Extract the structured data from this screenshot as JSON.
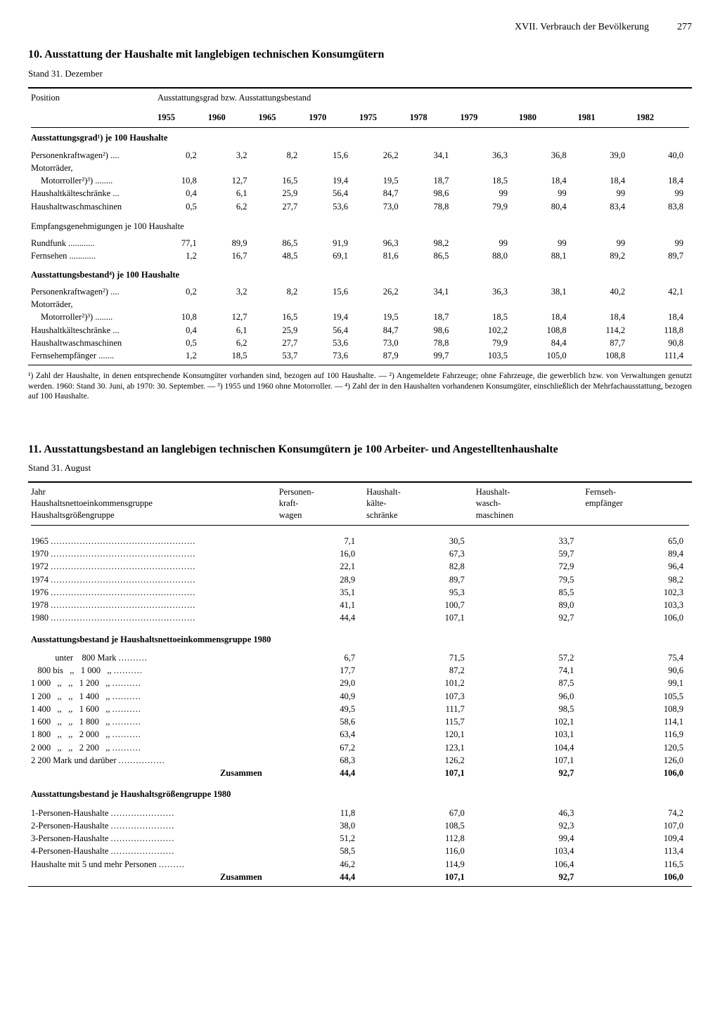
{
  "header": {
    "chapter": "XVII. Verbrauch der Bevölkerung",
    "page": "277"
  },
  "table10": {
    "title": "10. Ausstattung der Haushalte mit langlebigen technischen Konsumgütern",
    "subtitle": "Stand 31. Dezember",
    "col_position": "Position",
    "col_group_header": "Ausstattungsgrad bzw. Ausstattungsbestand",
    "years": [
      "1955",
      "1960",
      "1965",
      "1970",
      "1975",
      "1978",
      "1979",
      "1980",
      "1981",
      "1982"
    ],
    "sectionA": "Ausstattungsgrad¹) je 100 Haushalte",
    "rowsA": [
      {
        "label": "Personenkraftwagen²) ....",
        "vals": [
          "0,2",
          "3,2",
          "8,2",
          "15,6",
          "26,2",
          "34,1",
          "36,3",
          "36,8",
          "39,0",
          "40,0"
        ]
      },
      {
        "label": "Motorräder,",
        "vals": [
          "",
          "",
          "",
          "",
          "",
          "",
          "",
          "",
          "",
          ""
        ]
      },
      {
        "label": "Motorroller²)³) ........",
        "indent": true,
        "vals": [
          "10,8",
          "12,7",
          "16,5",
          "19,4",
          "19,5",
          "18,7",
          "18,5",
          "18,4",
          "18,4",
          "18,4"
        ]
      },
      {
        "label": "Haushaltkälteschränke ...",
        "vals": [
          "0,4",
          "6,1",
          "25,9",
          "56,4",
          "84,7",
          "98,6",
          "99",
          "99",
          "99",
          "99"
        ]
      },
      {
        "label": "Haushaltwaschmaschinen",
        "vals": [
          "0,5",
          "6,2",
          "27,7",
          "53,6",
          "73,0",
          "78,8",
          "79,9",
          "80,4",
          "83,4",
          "83,8"
        ]
      }
    ],
    "subheadA2": "Empfangsgenehmigungen je 100 Haushalte",
    "rowsA2": [
      {
        "label": "Rundfunk ............",
        "vals": [
          "77,1",
          "89,9",
          "86,5",
          "91,9",
          "96,3",
          "98,2",
          "99",
          "99",
          "99",
          "99"
        ]
      },
      {
        "label": "Fernsehen ............",
        "vals": [
          "1,2",
          "16,7",
          "48,5",
          "69,1",
          "81,6",
          "86,5",
          "88,0",
          "88,1",
          "89,2",
          "89,7"
        ]
      }
    ],
    "sectionB": "Ausstattungsbestand⁴) je 100 Haushalte",
    "rowsB": [
      {
        "label": "Personenkraftwagen²) ....",
        "vals": [
          "0,2",
          "3,2",
          "8,2",
          "15,6",
          "26,2",
          "34,1",
          "36,3",
          "38,1",
          "40,2",
          "42,1"
        ]
      },
      {
        "label": "Motorräder,",
        "vals": [
          "",
          "",
          "",
          "",
          "",
          "",
          "",
          "",
          "",
          ""
        ]
      },
      {
        "label": "Motorroller²)³) ........",
        "indent": true,
        "vals": [
          "10,8",
          "12,7",
          "16,5",
          "19,4",
          "19,5",
          "18,7",
          "18,5",
          "18,4",
          "18,4",
          "18,4"
        ]
      },
      {
        "label": "Haushaltkälteschränke ...",
        "vals": [
          "0,4",
          "6,1",
          "25,9",
          "56,4",
          "84,7",
          "98,6",
          "102,2",
          "108,8",
          "114,2",
          "118,8"
        ]
      },
      {
        "label": "Haushaltwaschmaschinen",
        "vals": [
          "0,5",
          "6,2",
          "27,7",
          "53,6",
          "73,0",
          "78,8",
          "79,9",
          "84,4",
          "87,7",
          "90,8"
        ]
      },
      {
        "label": "Fernsehempfänger .......",
        "vals": [
          "1,2",
          "18,5",
          "53,7",
          "73,6",
          "87,9",
          "99,7",
          "103,5",
          "105,0",
          "108,8",
          "111,4"
        ]
      }
    ],
    "footnote": "¹) Zahl der Haushalte, in denen entsprechende Konsumgüter vorhanden sind, bezogen auf 100 Haushalte. — ²) Angemeldete Fahrzeuge; ohne Fahrzeuge, die gewerblich bzw. von Verwaltungen genutzt werden. 1960: Stand 30. Juni, ab 1970: 30. September. — ³) 1955 und 1960 ohne Motorroller. — ⁴) Zahl der in den Haushalten vorhandenen Konsumgüter, einschließlich der Mehrfachausstattung, bezogen auf 100 Haushalte."
  },
  "table11": {
    "title": "11. Ausstattungsbestand an langlebigen technischen Konsumgütern je 100 Arbeiter- und Angestelltenhaushalte",
    "subtitle": "Stand 31. August",
    "col_label1": "Jahr",
    "col_label2": "Haushaltsnettoeinkommensgruppe",
    "col_label3": "Haushaltsgrößengruppe",
    "cols": [
      "Personen-\nkraft-\nwagen",
      "Haushalt-\nkälte-\nschränke",
      "Haushalt-\nwasch-\nmaschinen",
      "Fernseh-\nempfänger"
    ],
    "years_rows": [
      {
        "label": "1965",
        "vals": [
          "7,1",
          "30,5",
          "33,7",
          "65,0"
        ]
      },
      {
        "label": "1970",
        "vals": [
          "16,0",
          "67,3",
          "59,7",
          "89,4"
        ]
      },
      {
        "label": "1972",
        "vals": [
          "22,1",
          "82,8",
          "72,9",
          "96,4"
        ]
      },
      {
        "label": "1974",
        "vals": [
          "28,9",
          "89,7",
          "79,5",
          "98,2"
        ]
      },
      {
        "label": "1976",
        "vals": [
          "35,1",
          "95,3",
          "85,5",
          "102,3"
        ]
      },
      {
        "label": "1978",
        "vals": [
          "41,1",
          "100,7",
          "89,0",
          "103,3"
        ]
      },
      {
        "label": "1980",
        "vals": [
          "44,4",
          "107,1",
          "92,7",
          "106,0"
        ]
      }
    ],
    "income_header": "Ausstattungsbestand je Haushaltsnettoeinkommensgruppe 1980",
    "income_rows": [
      {
        "label": "           unter    800 Mark",
        "vals": [
          "6,7",
          "71,5",
          "57,2",
          "75,4"
        ]
      },
      {
        "label": "   800 bis   ,,   1 000   ,,",
        "vals": [
          "17,7",
          "87,2",
          "74,1",
          "90,6"
        ]
      },
      {
        "label": "1 000   ,,   ,,   1 200   ,,",
        "vals": [
          "29,0",
          "101,2",
          "87,5",
          "99,1"
        ]
      },
      {
        "label": "1 200   ,,   ,,   1 400   ,,",
        "vals": [
          "40,9",
          "107,3",
          "96,0",
          "105,5"
        ]
      },
      {
        "label": "1 400   ,,   ,,   1 600   ,,",
        "vals": [
          "49,5",
          "111,7",
          "98,5",
          "108,9"
        ]
      },
      {
        "label": "1 600   ,,   ,,   1 800   ,,",
        "vals": [
          "58,6",
          "115,7",
          "102,1",
          "114,1"
        ]
      },
      {
        "label": "1 800   ,,   ,,   2 000   ,,",
        "vals": [
          "63,4",
          "120,1",
          "103,1",
          "116,9"
        ]
      },
      {
        "label": "2 000   ,,   ,,   2 200   ,,",
        "vals": [
          "67,2",
          "123,1",
          "104,4",
          "120,5"
        ]
      },
      {
        "label": "2 200 Mark und darüber",
        "vals": [
          "68,3",
          "126,2",
          "107,1",
          "126,0"
        ]
      }
    ],
    "income_total": {
      "label": "Zusammen",
      "vals": [
        "44,4",
        "107,1",
        "92,7",
        "106,0"
      ]
    },
    "size_header": "Ausstattungsbestand je Haushaltsgrößengruppe 1980",
    "size_rows": [
      {
        "label": "1-Personen-Haushalte",
        "vals": [
          "11,8",
          "67,0",
          "46,3",
          "74,2"
        ]
      },
      {
        "label": "2-Personen-Haushalte",
        "vals": [
          "38,0",
          "108,5",
          "92,3",
          "107,0"
        ]
      },
      {
        "label": "3-Personen-Haushalte",
        "vals": [
          "51,2",
          "112,8",
          "99,4",
          "109,4"
        ]
      },
      {
        "label": "4-Personen-Haushalte",
        "vals": [
          "58,5",
          "116,0",
          "103,4",
          "113,4"
        ]
      },
      {
        "label": "Haushalte mit 5 und mehr Personen",
        "vals": [
          "46,2",
          "114,9",
          "106,4",
          "116,5"
        ]
      }
    ],
    "size_total": {
      "label": "Zusammen",
      "vals": [
        "44,4",
        "107,1",
        "92,7",
        "106,0"
      ]
    }
  }
}
